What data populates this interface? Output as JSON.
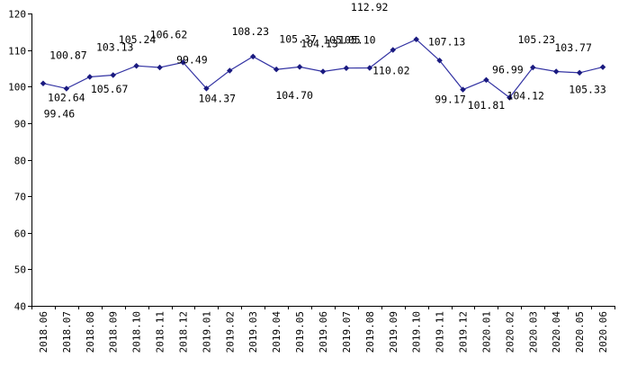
{
  "chart_data": {
    "type": "line",
    "title": "",
    "xlabel": "",
    "ylabel": "",
    "ylim": [
      40,
      120
    ],
    "yticks": [
      40,
      50,
      60,
      70,
      80,
      90,
      100,
      110,
      120
    ],
    "grid": false,
    "legend": "none",
    "categories": [
      "2018.06",
      "2018.07",
      "2018.08",
      "2018.09",
      "2018.10",
      "2018.11",
      "2018.12",
      "2019.01",
      "2019.02",
      "2019.03",
      "2019.04",
      "2019.05",
      "2019.06",
      "2019.07",
      "2019.08",
      "2019.09",
      "2019.10",
      "2019.11",
      "2019.12",
      "2020.01",
      "2020.02",
      "2020.03",
      "2020.04",
      "2020.05",
      "2020.06"
    ],
    "series": [
      {
        "color": "#3333a3",
        "values": [
          100.87,
          99.46,
          102.64,
          103.13,
          105.67,
          105.24,
          106.62,
          99.49,
          104.37,
          108.23,
          104.7,
          105.37,
          104.13,
          105.05,
          105.1,
          110.02,
          112.92,
          107.13,
          99.17,
          101.81,
          96.99,
          105.23,
          104.12,
          103.77,
          105.33
        ],
        "labels": [
          "100.87",
          "99.46",
          "102.64",
          "103.13",
          "105.67",
          "105.24",
          "106.62",
          "99.49",
          "104.37",
          "108.23",
          "104.70",
          "105.37",
          "104.13",
          "105.05",
          "105.10",
          "110.02",
          "112.92",
          "107.13",
          "99.17",
          "101.81",
          "96.99",
          "105.23",
          "104.12",
          "103.77",
          "105.33"
        ]
      }
    ]
  }
}
